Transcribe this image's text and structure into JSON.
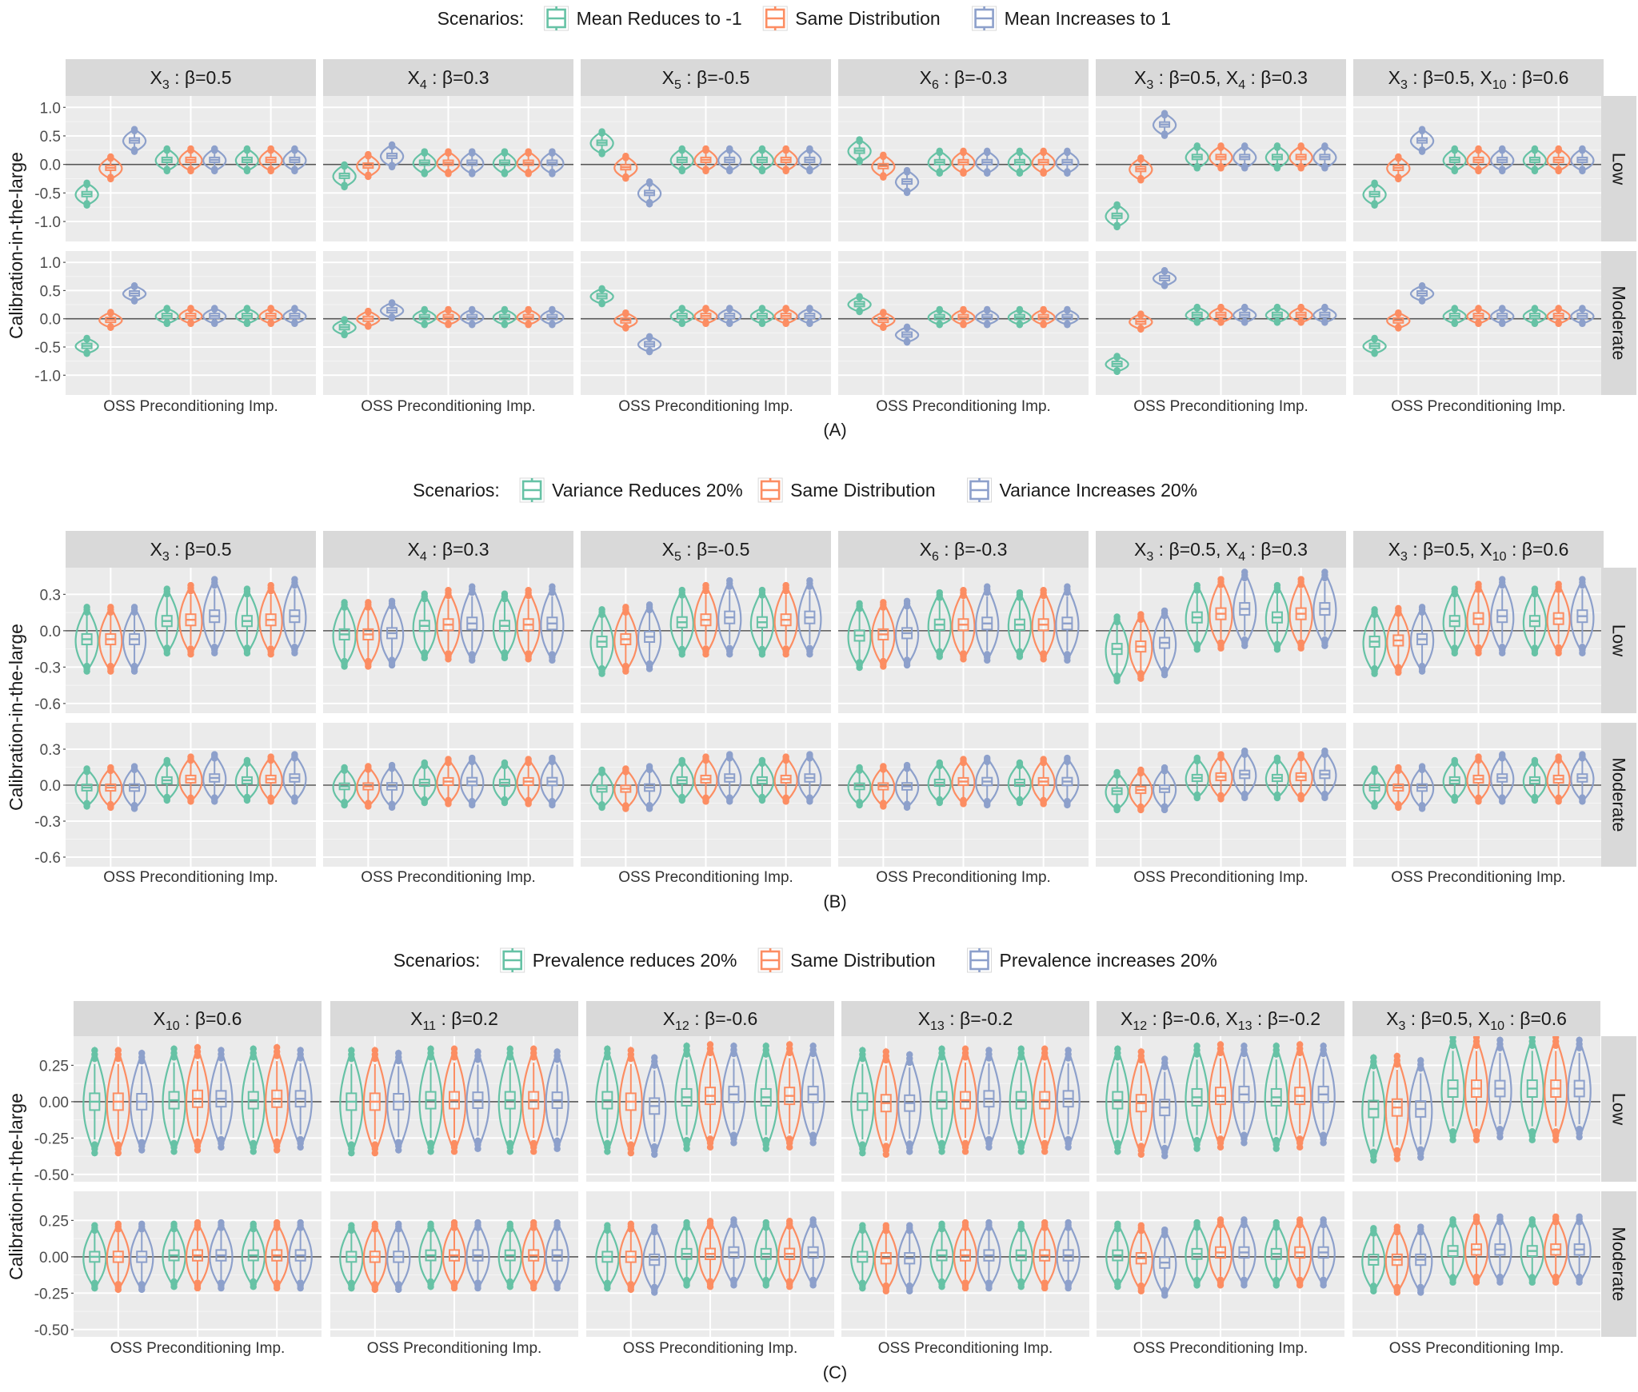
{
  "figure_layout": {
    "methods": [
      "OSS",
      "Preconditioning",
      "Imp."
    ],
    "row_strips": [
      "Low",
      "Moderate"
    ],
    "ylabel": "Calibration-in-the-large",
    "legend_prefix": "Scenarios:"
  },
  "chart_data": [
    {
      "type": "violin",
      "panel_label": "(A)",
      "legend": {
        "prefix": "Scenarios:",
        "entries": [
          "Mean Reduces to -1",
          "Same Distribution",
          "Mean Increases to 1"
        ]
      },
      "colors": [
        "#66c2a5",
        "#fc8d62",
        "#8da0cb"
      ],
      "xlabel": "OSS Preconditioning Imp.",
      "ylabel": "Calibration-in-the-large",
      "ylim": [
        -1.35,
        1.2
      ],
      "yticks": [
        1.0,
        0.5,
        0.0,
        -0.5,
        -1.0
      ],
      "ytick_labels": [
        "1.0",
        "0.5",
        "0.0",
        "-0.5",
        "-1.0"
      ],
      "facets": [
        {
          "main": "X",
          "sub": "3",
          "rest": " : β=0.5"
        },
        {
          "main": "X",
          "sub": "4",
          "rest": " : β=0.3"
        },
        {
          "main": "X",
          "sub": "5",
          "rest": " : β=-0.5"
        },
        {
          "main": "X",
          "sub": "6",
          "rest": " : β=-0.3"
        },
        {
          "main": "X",
          "sub": "3",
          "rest": " : β=0.5, X",
          "sub2": "4",
          "rest2": " : β=0.3"
        },
        {
          "main": "X",
          "sub": "3",
          "rest": " : β=0.5, X",
          "sub2": "10",
          "rest2": " : β=0.6"
        }
      ],
      "rows": [
        "Low",
        "Moderate"
      ],
      "medians": {
        "Low": [
          [
            [
              -0.52,
              -0.06,
              0.42
            ],
            [
              0.08,
              0.08,
              0.08
            ],
            [
              0.08,
              0.08,
              0.08
            ]
          ],
          [
            [
              -0.2,
              -0.02,
              0.15
            ],
            [
              0.03,
              0.03,
              0.03
            ],
            [
              0.03,
              0.03,
              0.03
            ]
          ],
          [
            [
              0.38,
              -0.05,
              -0.5
            ],
            [
              0.08,
              0.08,
              0.08
            ],
            [
              0.08,
              0.08,
              0.08
            ]
          ],
          [
            [
              0.24,
              -0.03,
              -0.3
            ],
            [
              0.04,
              0.04,
              0.04
            ],
            [
              0.04,
              0.04,
              0.04
            ]
          ],
          [
            [
              -0.9,
              -0.08,
              0.7
            ],
            [
              0.13,
              0.13,
              0.13
            ],
            [
              0.13,
              0.13,
              0.13
            ]
          ],
          [
            [
              -0.52,
              -0.06,
              0.42
            ],
            [
              0.08,
              0.08,
              0.08
            ],
            [
              0.08,
              0.08,
              0.08
            ]
          ]
        ],
        "Moderate": [
          [
            [
              -0.48,
              -0.02,
              0.45
            ],
            [
              0.05,
              0.05,
              0.05
            ],
            [
              0.05,
              0.05,
              0.05
            ]
          ],
          [
            [
              -0.15,
              0.0,
              0.15
            ],
            [
              0.03,
              0.03,
              0.03
            ],
            [
              0.03,
              0.03,
              0.03
            ]
          ],
          [
            [
              0.4,
              -0.03,
              -0.45
            ],
            [
              0.05,
              0.05,
              0.05
            ],
            [
              0.05,
              0.05,
              0.05
            ]
          ],
          [
            [
              0.26,
              -0.02,
              -0.28
            ],
            [
              0.03,
              0.03,
              0.03
            ],
            [
              0.03,
              0.03,
              0.03
            ]
          ],
          [
            [
              -0.8,
              -0.05,
              0.72
            ],
            [
              0.07,
              0.07,
              0.07
            ],
            [
              0.07,
              0.07,
              0.07
            ]
          ],
          [
            [
              -0.48,
              -0.03,
              0.45
            ],
            [
              0.05,
              0.05,
              0.05
            ],
            [
              0.05,
              0.05,
              0.05
            ]
          ]
        ]
      },
      "spreads": {
        "Low": [
          [
            0.2,
            0.2,
            0.2
          ],
          [
            0.2,
            0.2,
            0.2
          ],
          [
            0.2,
            0.2,
            0.2
          ]
        ],
        "Moderate": [
          [
            0.14,
            0.14,
            0.14
          ],
          [
            0.14,
            0.14,
            0.14
          ],
          [
            0.14,
            0.14,
            0.14
          ]
        ]
      }
    },
    {
      "type": "violin",
      "panel_label": "(B)",
      "legend": {
        "prefix": "Scenarios:",
        "entries": [
          "Variance Reduces 20%",
          "Same Distribution",
          "Variance Increases 20%"
        ]
      },
      "colors": [
        "#66c2a5",
        "#fc8d62",
        "#8da0cb"
      ],
      "xlabel": "OSS Preconditioning Imp.",
      "ylabel": "Calibration-in-the-large",
      "ylim": [
        -0.68,
        0.52
      ],
      "yticks": [
        0.3,
        0.0,
        -0.3,
        -0.6
      ],
      "ytick_labels": [
        "0.3",
        "0.0",
        "-0.3",
        "-0.6"
      ],
      "facets": [
        {
          "main": "X",
          "sub": "3",
          "rest": " : β=0.5"
        },
        {
          "main": "X",
          "sub": "4",
          "rest": " : β=0.3"
        },
        {
          "main": "X",
          "sub": "5",
          "rest": " : β=-0.5"
        },
        {
          "main": "X",
          "sub": "6",
          "rest": " : β=-0.3"
        },
        {
          "main": "X",
          "sub": "3",
          "rest": " : β=0.5, X",
          "sub2": "4",
          "rest2": " : β=0.3"
        },
        {
          "main": "X",
          "sub": "3",
          "rest": " : β=0.5, X",
          "sub2": "10",
          "rest2": " : β=0.6"
        }
      ],
      "rows": [
        "Low",
        "Moderate"
      ],
      "medians": {
        "Low": [
          [
            [
              -0.07,
              -0.07,
              -0.07
            ],
            [
              0.08,
              0.09,
              0.12
            ],
            [
              0.08,
              0.09,
              0.12
            ]
          ],
          [
            [
              -0.03,
              -0.03,
              -0.02
            ],
            [
              0.04,
              0.05,
              0.06
            ],
            [
              0.04,
              0.05,
              0.06
            ]
          ],
          [
            [
              -0.09,
              -0.07,
              -0.05
            ],
            [
              0.07,
              0.09,
              0.11
            ],
            [
              0.07,
              0.09,
              0.11
            ]
          ],
          [
            [
              -0.04,
              -0.03,
              -0.02
            ],
            [
              0.05,
              0.05,
              0.06
            ],
            [
              0.05,
              0.05,
              0.06
            ]
          ],
          [
            [
              -0.15,
              -0.13,
              -0.1
            ],
            [
              0.11,
              0.14,
              0.18
            ],
            [
              0.11,
              0.14,
              0.18
            ]
          ],
          [
            [
              -0.09,
              -0.08,
              -0.07
            ],
            [
              0.08,
              0.1,
              0.12
            ],
            [
              0.08,
              0.1,
              0.12
            ]
          ]
        ],
        "Moderate": [
          [
            [
              -0.02,
              -0.02,
              -0.02
            ],
            [
              0.04,
              0.05,
              0.06
            ],
            [
              0.04,
              0.05,
              0.06
            ]
          ],
          [
            [
              -0.01,
              -0.01,
              -0.01
            ],
            [
              0.02,
              0.03,
              0.03
            ],
            [
              0.02,
              0.03,
              0.03
            ]
          ],
          [
            [
              -0.03,
              -0.03,
              -0.02
            ],
            [
              0.04,
              0.05,
              0.06
            ],
            [
              0.04,
              0.05,
              0.06
            ]
          ],
          [
            [
              -0.01,
              -0.01,
              -0.01
            ],
            [
              0.02,
              0.03,
              0.03
            ],
            [
              0.02,
              0.03,
              0.03
            ]
          ],
          [
            [
              -0.05,
              -0.04,
              -0.03
            ],
            [
              0.06,
              0.07,
              0.09
            ],
            [
              0.06,
              0.07,
              0.09
            ]
          ],
          [
            [
              -0.02,
              -0.02,
              -0.02
            ],
            [
              0.04,
              0.05,
              0.06
            ],
            [
              0.04,
              0.05,
              0.06
            ]
          ]
        ]
      },
      "spreads": {
        "Low": [
          [
            0.27,
            0.27,
            0.27
          ],
          [
            0.27,
            0.29,
            0.31
          ],
          [
            0.27,
            0.29,
            0.31
          ]
        ],
        "Moderate": [
          [
            0.16,
            0.17,
            0.18
          ],
          [
            0.17,
            0.19,
            0.2
          ],
          [
            0.17,
            0.19,
            0.2
          ]
        ]
      }
    },
    {
      "type": "violin",
      "panel_label": "(C)",
      "legend": {
        "prefix": "Scenarios:",
        "entries": [
          "Prevalence reduces 20%",
          "Same Distribution",
          "Prevalence increases 20%"
        ]
      },
      "colors": [
        "#66c2a5",
        "#fc8d62",
        "#8da0cb"
      ],
      "xlabel": "OSS Preconditioning Imp.",
      "ylabel": "Calibration-in-the-large",
      "ylim": [
        -0.55,
        0.45
      ],
      "yticks": [
        0.25,
        0.0,
        -0.25,
        -0.5
      ],
      "ytick_labels": [
        "0.25",
        "0.00",
        "-0.25",
        "-0.50"
      ],
      "facets": [
        {
          "main": "X",
          "sub": "10",
          "rest": " : β=0.6"
        },
        {
          "main": "X",
          "sub": "11",
          "rest": " : β=0.2"
        },
        {
          "main": "X",
          "sub": "12",
          "rest": " : β=-0.6"
        },
        {
          "main": "X",
          "sub": "13",
          "rest": " : β=-0.2"
        },
        {
          "main": "X",
          "sub": "12",
          "rest": " : β=-0.6, X",
          "sub2": "13",
          "rest2": " : β=-0.2"
        },
        {
          "main": "X",
          "sub": "3",
          "rest": " : β=0.5, X",
          "sub2": "10",
          "rest2": " : β=0.6"
        }
      ],
      "rows": [
        "Low",
        "Moderate"
      ],
      "medians": {
        "Low": [
          [
            [
              0.0,
              0.0,
              0.0
            ],
            [
              0.01,
              0.02,
              0.02
            ],
            [
              0.01,
              0.02,
              0.02
            ]
          ],
          [
            [
              0.0,
              0.0,
              0.0
            ],
            [
              0.01,
              0.01,
              0.01
            ],
            [
              0.01,
              0.01,
              0.01
            ]
          ],
          [
            [
              0.01,
              0.0,
              -0.03
            ],
            [
              0.03,
              0.04,
              0.05
            ],
            [
              0.03,
              0.04,
              0.05
            ]
          ],
          [
            [
              0.0,
              -0.01,
              -0.01
            ],
            [
              0.01,
              0.01,
              0.02
            ],
            [
              0.01,
              0.01,
              0.02
            ]
          ],
          [
            [
              0.01,
              -0.01,
              -0.04
            ],
            [
              0.03,
              0.04,
              0.05
            ],
            [
              0.03,
              0.04,
              0.05
            ]
          ],
          [
            [
              -0.05,
              -0.04,
              -0.05
            ],
            [
              0.09,
              0.09,
              0.09
            ],
            [
              0.09,
              0.09,
              0.09
            ]
          ]
        ],
        "Moderate": [
          [
            [
              0.0,
              0.0,
              0.0
            ],
            [
              0.01,
              0.01,
              0.01
            ],
            [
              0.01,
              0.01,
              0.01
            ]
          ],
          [
            [
              0.0,
              0.0,
              0.0
            ],
            [
              0.01,
              0.01,
              0.01
            ],
            [
              0.01,
              0.01,
              0.01
            ]
          ],
          [
            [
              0.0,
              0.0,
              -0.02
            ],
            [
              0.02,
              0.02,
              0.03
            ],
            [
              0.02,
              0.02,
              0.03
            ]
          ],
          [
            [
              0.0,
              -0.01,
              -0.01
            ],
            [
              0.01,
              0.01,
              0.01
            ],
            [
              0.01,
              0.01,
              0.01
            ]
          ],
          [
            [
              0.01,
              -0.01,
              -0.04
            ],
            [
              0.02,
              0.03,
              0.03
            ],
            [
              0.02,
              0.03,
              0.03
            ]
          ],
          [
            [
              -0.02,
              -0.02,
              -0.02
            ],
            [
              0.04,
              0.05,
              0.05
            ],
            [
              0.04,
              0.05,
              0.05
            ]
          ]
        ]
      },
      "spreads": {
        "Low": [
          [
            0.36,
            0.36,
            0.34
          ],
          [
            0.36,
            0.36,
            0.34
          ],
          [
            0.36,
            0.36,
            0.34
          ]
        ],
        "Moderate": [
          [
            0.22,
            0.23,
            0.23
          ],
          [
            0.22,
            0.23,
            0.23
          ],
          [
            0.22,
            0.23,
            0.23
          ]
        ]
      }
    }
  ]
}
